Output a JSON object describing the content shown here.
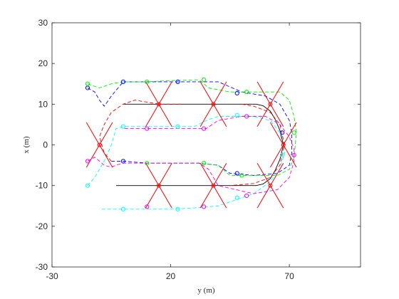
{
  "chart_data": {
    "type": "line",
    "title": "",
    "xlabel": "y (m)",
    "ylabel": "x (m)",
    "xlim": [
      -30,
      100
    ],
    "ylim": [
      -30,
      30
    ],
    "xticks": [
      -30,
      20,
      70
    ],
    "yticks": [
      -30,
      -20,
      -10,
      0,
      10,
      20,
      30
    ],
    "grid": false,
    "legend": "none",
    "series": [
      {
        "color": "#000000",
        "style": "solid",
        "points": [
          [
            0,
            10
          ],
          [
            56,
            10
          ],
          [
            59,
            9.6
          ],
          [
            62,
            8.3
          ],
          [
            64,
            6.3
          ],
          [
            66,
            3.6
          ],
          [
            67.5,
            0
          ],
          [
            66,
            -3.6
          ],
          [
            64,
            -6.3
          ],
          [
            62,
            -8.3
          ],
          [
            59,
            -9.6
          ],
          [
            56,
            -10
          ],
          [
            -3,
            -10
          ]
        ]
      },
      {
        "color": "#0000ff",
        "style": "dashed",
        "points": [
          [
            -15,
            14
          ],
          [
            -12,
            13
          ],
          [
            -10,
            11
          ],
          [
            -8,
            9.5
          ],
          [
            -5,
            12
          ],
          [
            0,
            15.5
          ],
          [
            20,
            15.5
          ],
          [
            40,
            15.5
          ],
          [
            50,
            13
          ],
          [
            60,
            12
          ],
          [
            66,
            10
          ],
          [
            70,
            6
          ],
          [
            71,
            3
          ],
          [
            71,
            -2
          ],
          [
            70,
            -5
          ],
          [
            65,
            -7
          ],
          [
            55,
            -7.5
          ],
          [
            45,
            -7
          ],
          [
            40,
            -5
          ],
          [
            32,
            -4.5
          ],
          [
            20,
            -4.5
          ],
          [
            10,
            -4.5
          ],
          [
            0,
            -4
          ],
          [
            -5,
            -4
          ]
        ]
      },
      {
        "color": "#00ee00",
        "style": "dashed",
        "points": [
          [
            -15,
            15
          ],
          [
            -10,
            14
          ],
          [
            -5,
            15
          ],
          [
            0,
            15.5
          ],
          [
            10,
            15.5
          ],
          [
            20,
            15.8
          ],
          [
            32,
            16
          ],
          [
            36,
            14
          ],
          [
            45,
            13
          ],
          [
            55,
            13
          ],
          [
            66,
            13
          ],
          [
            70,
            11
          ],
          [
            72,
            7
          ],
          [
            73,
            3
          ],
          [
            72,
            -3
          ],
          [
            70,
            -6
          ],
          [
            65,
            -7.5
          ],
          [
            55,
            -7.5
          ],
          [
            45,
            -7.5
          ],
          [
            40,
            -5
          ],
          [
            32,
            -4.5
          ],
          [
            20,
            -4.5
          ],
          [
            10,
            -4.5
          ]
        ]
      },
      {
        "color": "#00ffff",
        "style": "dashed",
        "points": [
          [
            -15,
            -10
          ],
          [
            -12,
            -8
          ],
          [
            -8,
            -4
          ],
          [
            -5,
            0
          ],
          [
            -3,
            4
          ],
          [
            0,
            4.5
          ],
          [
            10,
            4.5
          ],
          [
            20,
            4.5
          ],
          [
            30,
            4.5
          ],
          [
            35,
            6
          ],
          [
            40,
            7
          ],
          [
            55,
            7
          ],
          [
            62,
            6
          ],
          [
            66,
            3
          ],
          [
            68,
            -2
          ],
          [
            66,
            -6
          ],
          [
            62,
            -9
          ],
          [
            55,
            -12
          ],
          [
            50,
            -13
          ],
          [
            40,
            -15
          ],
          [
            30,
            -15.5
          ],
          [
            20,
            -15.8
          ],
          [
            0,
            -15.8
          ],
          [
            -10,
            -15.8
          ]
        ]
      },
      {
        "color": "#ff00ff",
        "style": "dashed",
        "points": [
          [
            -15,
            -4
          ],
          [
            -12,
            -3
          ],
          [
            -8,
            -5
          ],
          [
            -5,
            -5.5
          ],
          [
            -3,
            -5
          ],
          [
            0,
            -4.5
          ],
          [
            10,
            -4.5
          ],
          [
            20,
            -4.5
          ],
          [
            32,
            -4.5
          ],
          [
            36,
            -6
          ],
          [
            40,
            -10
          ],
          [
            55,
            -12
          ],
          [
            65,
            -11
          ],
          [
            70,
            -8
          ],
          [
            72,
            -4
          ],
          [
            72,
            -1
          ],
          [
            70,
            2
          ],
          [
            66,
            5
          ],
          [
            60,
            7
          ],
          [
            50,
            7
          ],
          [
            40,
            6
          ],
          [
            35,
            4
          ],
          [
            30,
            4
          ],
          [
            20,
            4
          ],
          [
            10,
            4
          ],
          [
            0,
            4
          ]
        ]
      },
      {
        "color": "#ff0000",
        "style": "dashed",
        "points": [
          [
            -5,
            -4
          ],
          [
            -8,
            -2
          ],
          [
            -10,
            2
          ],
          [
            -8,
            5
          ],
          [
            -5,
            8
          ],
          [
            0,
            10
          ],
          [
            5,
            11
          ],
          [
            15,
            10
          ],
          [
            25,
            10
          ]
        ]
      },
      {
        "color": "#ff0000",
        "style": "dashed",
        "points": [
          [
            50,
            10
          ],
          [
            55,
            9.5
          ],
          [
            62,
            8
          ],
          [
            66,
            5
          ],
          [
            68,
            0
          ],
          [
            66,
            -5
          ],
          [
            62,
            -8
          ],
          [
            55,
            -9.5
          ],
          [
            45,
            -10
          ]
        ]
      }
    ],
    "markers": [
      {
        "color": "#0000ff",
        "points": [
          [
            -15,
            14
          ],
          [
            0,
            15.5
          ],
          [
            23,
            15.5
          ],
          [
            48,
            12.7
          ],
          [
            67,
            3
          ],
          [
            48,
            -7
          ],
          [
            0,
            -4
          ]
        ]
      },
      {
        "color": "#00ee00",
        "points": [
          [
            -15,
            15
          ],
          [
            10,
            15.5
          ],
          [
            34,
            16
          ],
          [
            52,
            13
          ],
          [
            72,
            3
          ],
          [
            50,
            -7.5
          ],
          [
            10,
            -4.5
          ],
          [
            34,
            -4.5
          ]
        ]
      },
      {
        "color": "#00ffff",
        "points": [
          [
            -15,
            -10
          ],
          [
            0,
            4.5
          ],
          [
            23,
            4.5
          ],
          [
            48,
            7.3
          ],
          [
            67,
            -2.5
          ],
          [
            48,
            -13
          ],
          [
            0,
            -15.8
          ],
          [
            23,
            -15.8
          ]
        ]
      },
      {
        "color": "#ff00ff",
        "points": [
          [
            -15,
            -4
          ],
          [
            10,
            4
          ],
          [
            34,
            4
          ],
          [
            52,
            7
          ],
          [
            72,
            -2.5
          ],
          [
            52,
            -12.5
          ],
          [
            10,
            -15.2
          ],
          [
            34,
            -15.2
          ]
        ]
      }
    ],
    "vehicles": {
      "color": "#ff0000",
      "centers": [
        [
          -10,
          0
        ],
        [
          15,
          10
        ],
        [
          38,
          10
        ],
        [
          62,
          10
        ],
        [
          15,
          -10
        ],
        [
          38,
          -10
        ],
        [
          62,
          -10
        ],
        [
          67.5,
          0
        ]
      ],
      "arm_length": 10
    }
  }
}
